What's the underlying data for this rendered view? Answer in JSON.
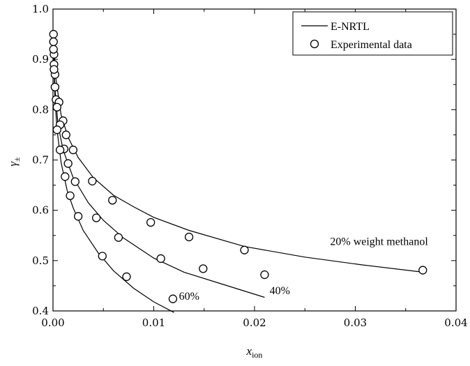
{
  "chart_data": {
    "type": "line",
    "xlabel": "x",
    "xlabel_sub": "ion",
    "ylabel": "γ",
    "ylabel_sub": "±",
    "xlim": [
      0,
      0.04
    ],
    "ylim": [
      0.4,
      1.0
    ],
    "x_ticks": [
      0,
      0.01,
      0.02,
      0.03,
      0.04
    ],
    "x_tick_labels": [
      "0.00",
      "0.01",
      "0.02",
      "0.03",
      "0.04"
    ],
    "y_ticks": [
      0.4,
      0.5,
      0.6,
      0.7,
      0.8,
      0.9,
      1.0
    ],
    "y_tick_labels": [
      "0.4",
      "0.5",
      "0.6",
      "0.7",
      "0.8",
      "0.9",
      "1.0"
    ],
    "grid": false,
    "legend": {
      "placement": "top-right",
      "entries": [
        {
          "label": "E-NRTL",
          "marker": "line"
        },
        {
          "label": "Experimental data",
          "marker": "open-circle"
        }
      ]
    },
    "annotations": [
      {
        "text": "20% weight methanol",
        "x": 0.0275,
        "y": 0.531
      },
      {
        "text": "40%",
        "x": 0.0215,
        "y": 0.433
      },
      {
        "text": "60%",
        "x": 0.0125,
        "y": 0.422
      }
    ],
    "series": [
      {
        "line": {
          "x": [
            0.0,
            0.0003,
            0.0008,
            0.0015,
            0.0025,
            0.004,
            0.006,
            0.008,
            0.01,
            0.0135,
            0.019,
            0.025,
            0.0305,
            0.0367
          ],
          "y": [
            0.955,
            0.86,
            0.79,
            0.745,
            0.705,
            0.665,
            0.63,
            0.607,
            0.586,
            0.56,
            0.528,
            0.507,
            0.492,
            0.477
          ]
        },
        "points": {
          "x": [
            5e-05,
            0.0001,
            0.0002,
            0.0003,
            0.0006,
            0.001,
            0.0013,
            0.002,
            0.0039,
            0.0059,
            0.0097,
            0.0135,
            0.019,
            0.0367
          ],
          "y": [
            0.95,
            0.91,
            0.87,
            0.82,
            0.815,
            0.778,
            0.75,
            0.72,
            0.658,
            0.62,
            0.576,
            0.547,
            0.521,
            0.481
          ]
        }
      },
      {
        "line": {
          "x": [
            0.0,
            0.0002,
            0.0005,
            0.001,
            0.002,
            0.0035,
            0.005,
            0.007,
            0.01,
            0.013,
            0.017,
            0.021
          ],
          "y": [
            0.94,
            0.84,
            0.77,
            0.72,
            0.665,
            0.615,
            0.58,
            0.545,
            0.505,
            0.477,
            0.452,
            0.427
          ]
        },
        "points": {
          "x": [
            5e-05,
            0.0001,
            0.0002,
            0.0004,
            0.0007,
            0.0011,
            0.0015,
            0.0022,
            0.0043,
            0.0065,
            0.0107,
            0.0149,
            0.021
          ],
          "y": [
            0.935,
            0.89,
            0.845,
            0.805,
            0.77,
            0.722,
            0.693,
            0.657,
            0.585,
            0.546,
            0.504,
            0.484,
            0.472
          ]
        }
      },
      {
        "line": {
          "x": [
            0.0,
            0.0002,
            0.0004,
            0.0008,
            0.0014,
            0.002,
            0.003,
            0.0045,
            0.006,
            0.008,
            0.01,
            0.012
          ],
          "y": [
            0.93,
            0.82,
            0.76,
            0.695,
            0.64,
            0.605,
            0.56,
            0.515,
            0.48,
            0.445,
            0.418,
            0.397
          ]
        },
        "points": {
          "x": [
            5e-05,
            0.0001,
            0.0002,
            0.0004,
            0.0007,
            0.0012,
            0.0017,
            0.0025,
            0.0049,
            0.0073,
            0.0119
          ],
          "y": [
            0.92,
            0.88,
            0.845,
            0.76,
            0.72,
            0.667,
            0.629,
            0.588,
            0.509,
            0.468,
            0.424
          ]
        }
      }
    ]
  }
}
